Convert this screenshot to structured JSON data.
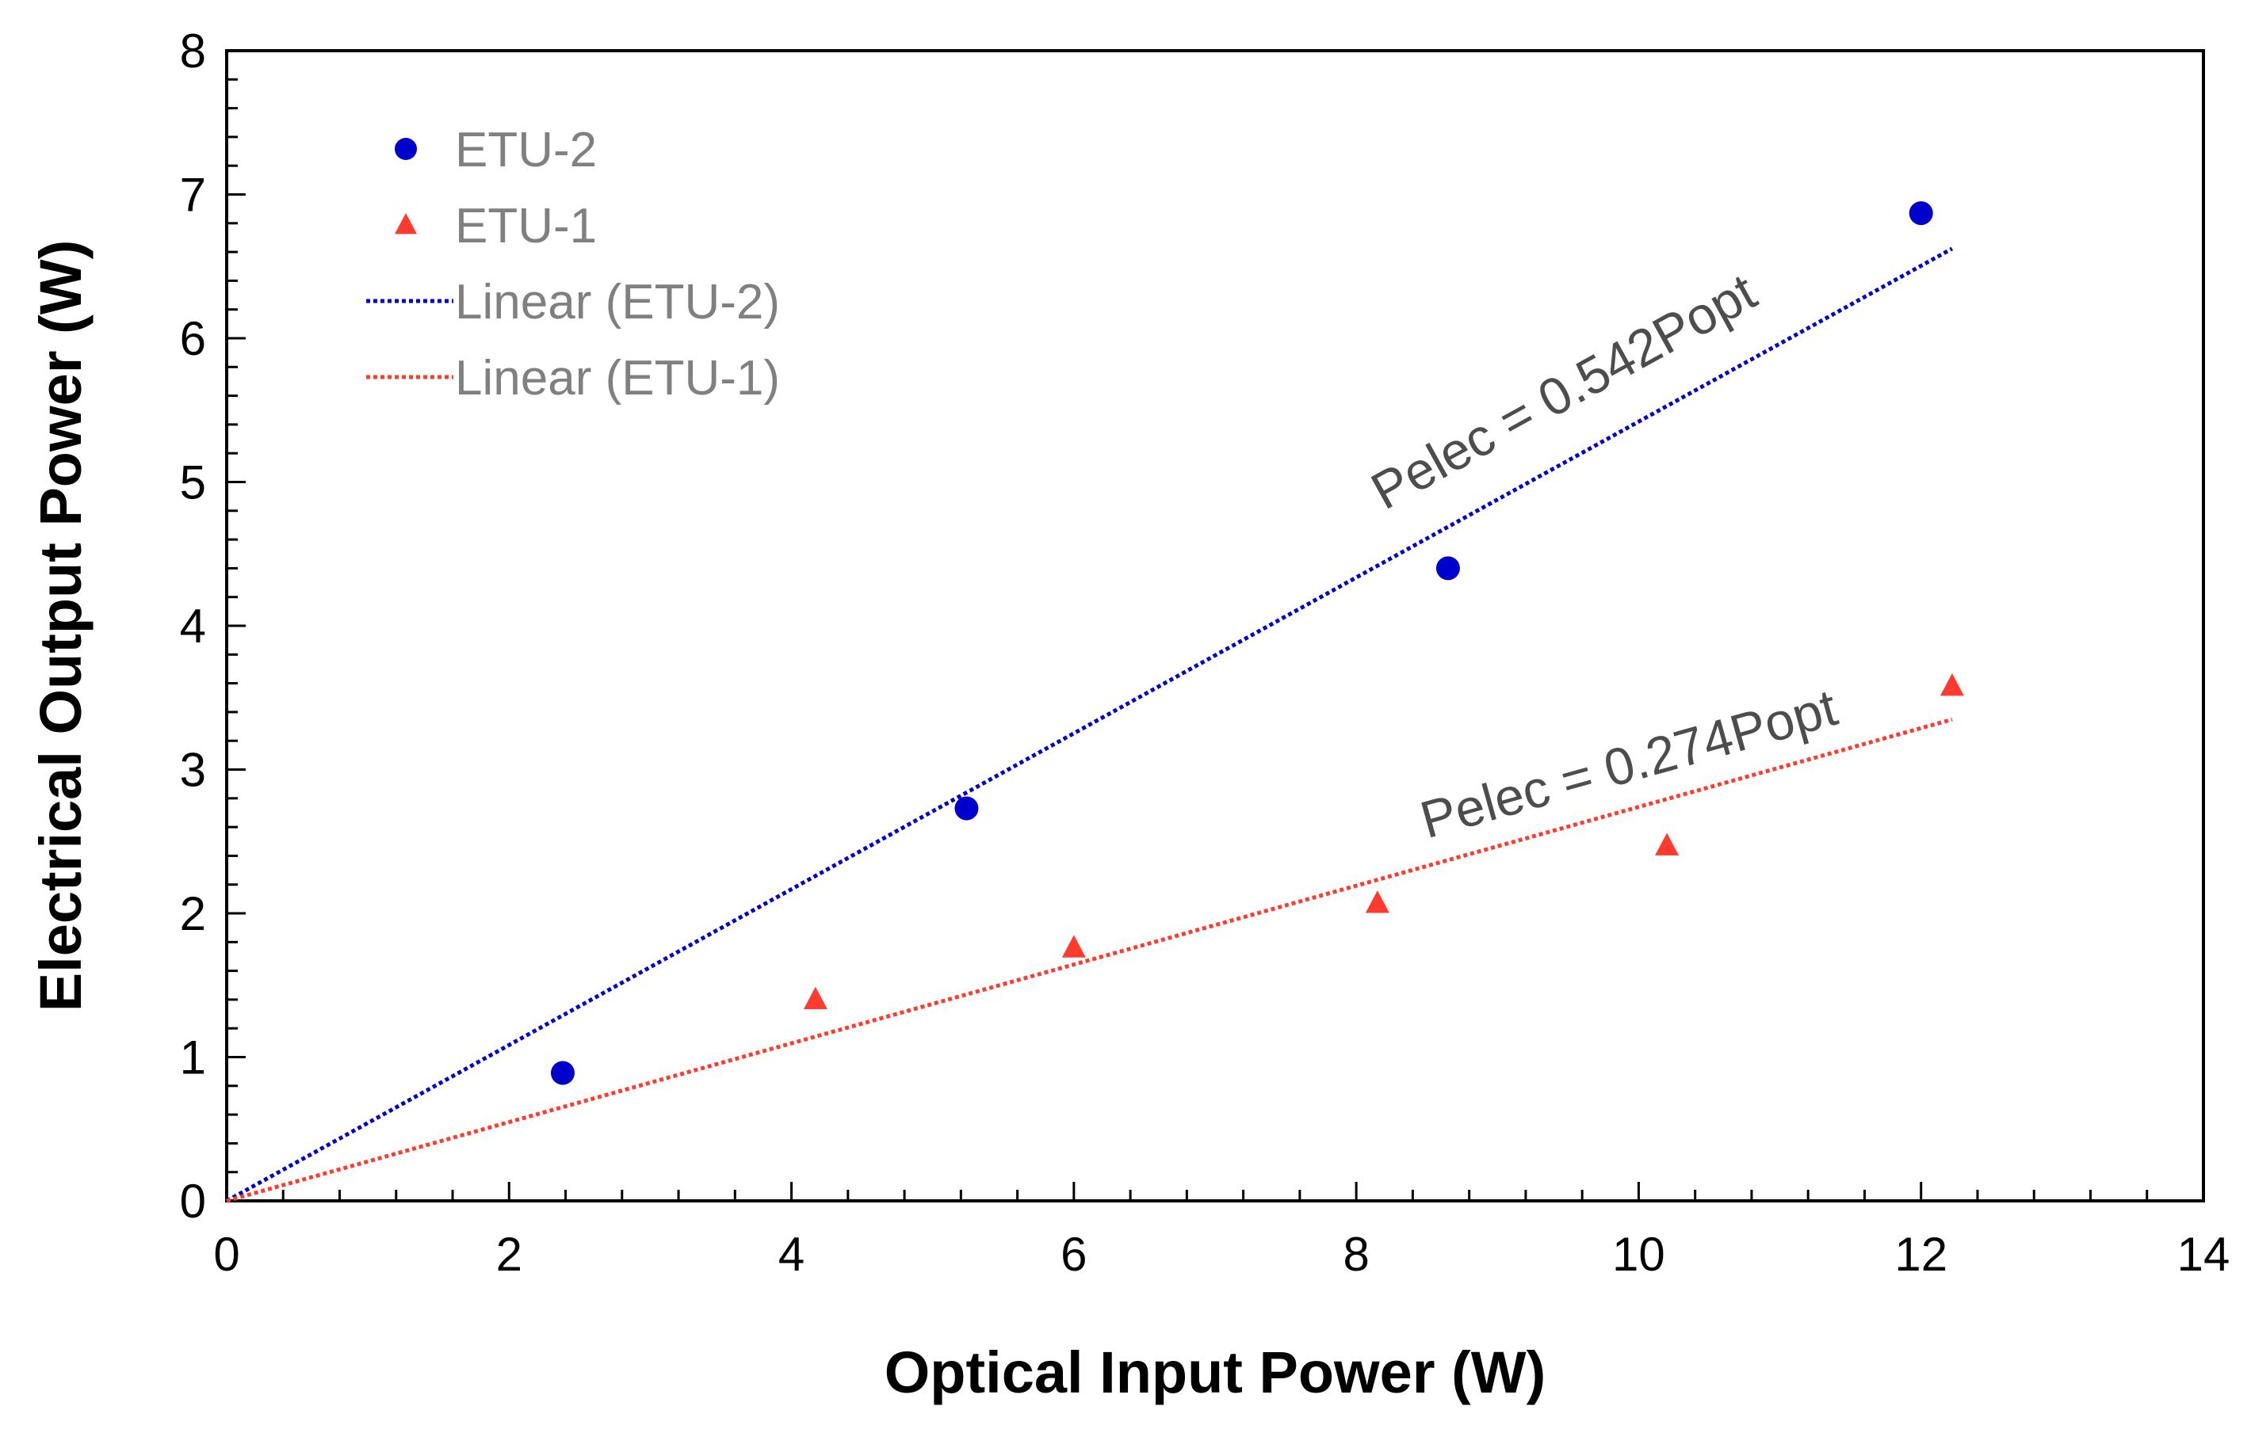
{
  "chart_data": {
    "type": "scatter",
    "xlabel": "Optical Input Power (W)",
    "ylabel": "Electrical Output Power (W)",
    "xlim": [
      0,
      14
    ],
    "ylim": [
      0,
      8
    ],
    "x_ticks": [
      0,
      2,
      4,
      6,
      8,
      10,
      12,
      14
    ],
    "y_ticks": [
      0,
      1,
      2,
      3,
      4,
      5,
      6,
      7,
      8
    ],
    "x_minor_step": 0.4,
    "y_minor_step": 0.2,
    "grid": false,
    "legend_position": "top-left",
    "series": [
      {
        "name": "ETU-2",
        "marker": "circle",
        "color": "#0000cc",
        "points": [
          [
            2.38,
            0.89
          ],
          [
            5.24,
            2.73
          ],
          [
            8.65,
            4.4
          ],
          [
            12.0,
            6.87
          ]
        ]
      },
      {
        "name": "ETU-1",
        "marker": "triangle",
        "color": "#ff3b30",
        "points": [
          [
            4.17,
            1.4
          ],
          [
            6.0,
            1.76
          ],
          [
            8.15,
            2.07
          ],
          [
            10.2,
            2.47
          ],
          [
            12.22,
            3.58
          ]
        ]
      }
    ],
    "trendlines": [
      {
        "name": "Linear (ETU-2)",
        "color": "#0000cc",
        "style": "dotted",
        "slope": 0.542,
        "x_range": [
          0,
          12.22
        ]
      },
      {
        "name": "Linear (ETU-1)",
        "color": "#ff3b30",
        "style": "dotted",
        "slope": 0.274,
        "x_range": [
          0,
          12.22
        ]
      }
    ],
    "legend": [
      {
        "label": "ETU-2",
        "kind": "circle",
        "color": "#0000cc"
      },
      {
        "label": "ETU-1",
        "kind": "triangle",
        "color": "#ff3b30"
      },
      {
        "label": "Linear (ETU-2)",
        "kind": "line",
        "color": "#0000cc"
      },
      {
        "label": "Linear (ETU-1)",
        "kind": "line",
        "color": "#ff3b30"
      }
    ],
    "annotations": [
      {
        "text": "Pelec = 0.542Popt",
        "anchor_x": 8.2,
        "anchor_y": 4.8,
        "follows_slope": 0.542
      },
      {
        "text": "Pelec = 0.274Popt",
        "anchor_x": 8.5,
        "anchor_y": 2.52,
        "follows_slope": 0.274
      }
    ]
  }
}
